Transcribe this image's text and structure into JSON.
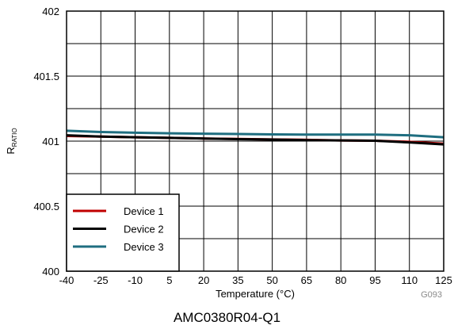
{
  "chart_data": {
    "type": "line",
    "ylabel_main": "R",
    "ylabel_sub": "RATIO",
    "xlabel": "Temperature (°C)",
    "figure_code": "G093",
    "xlim": [
      -40,
      125
    ],
    "ylim": [
      400,
      402
    ],
    "x_ticks": [
      -40,
      -25,
      -10,
      5,
      20,
      35,
      50,
      65,
      80,
      95,
      110,
      125
    ],
    "y_ticks": [
      {
        "value": 400,
        "label": "400"
      },
      {
        "value": 400.5,
        "label": "400.5"
      },
      {
        "value": 401,
        "label": "401"
      },
      {
        "value": 401.5,
        "label": "401.5"
      },
      {
        "value": 402,
        "label": "402"
      }
    ],
    "grid": true,
    "legend_position": "bottom-left",
    "x": [
      -40,
      -25,
      -10,
      5,
      20,
      35,
      50,
      65,
      80,
      95,
      110,
      125
    ],
    "series": [
      {
        "name": "Device 1",
        "color": "#c00000",
        "values": [
          401.04,
          401.035,
          401.03,
          401.025,
          401.02,
          401.017,
          401.013,
          401.01,
          401.005,
          401.003,
          400.995,
          400.98
        ]
      },
      {
        "name": "Device 2",
        "color": "#000000",
        "values": [
          401.045,
          401.035,
          401.03,
          401.025,
          401.02,
          401.015,
          401.012,
          401.008,
          401.005,
          401.003,
          400.99,
          400.975
        ]
      },
      {
        "name": "Device 3",
        "color": "#1f6e80",
        "values": [
          401.08,
          401.07,
          401.065,
          401.06,
          401.057,
          401.055,
          401.052,
          401.05,
          401.05,
          401.05,
          401.045,
          401.03
        ]
      }
    ]
  },
  "caption": "AMC0380R04-Q1"
}
